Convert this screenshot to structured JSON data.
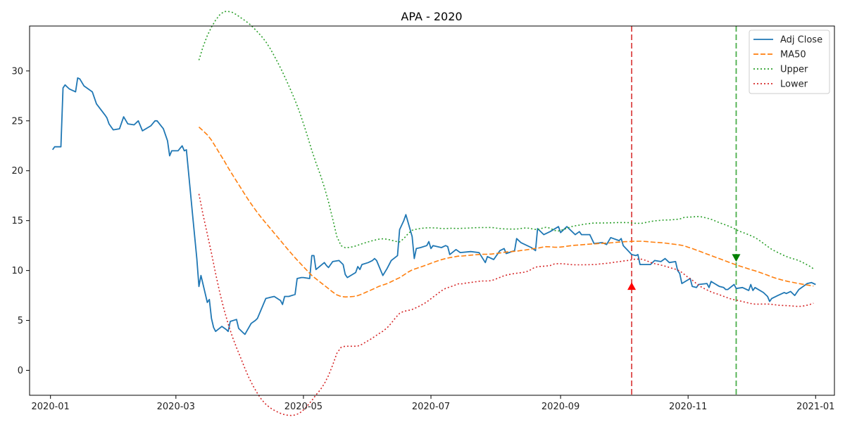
{
  "chart_data": {
    "type": "line",
    "title": "APA - 2020",
    "xlabel": "",
    "ylabel": "",
    "xlim": [
      "2019-12-22",
      "2021-01-10"
    ],
    "ylim": [
      -2.5,
      34.5
    ],
    "grid": false,
    "legend_position": "top-right",
    "x_ticks": [
      "2020-01",
      "2020-03",
      "2020-05",
      "2020-07",
      "2020-09",
      "2020-11",
      "2021-01"
    ],
    "y_ticks": [
      0,
      5,
      10,
      15,
      20,
      25,
      30
    ],
    "series": [
      {
        "name": "Adj Close",
        "color": "#1f77b4",
        "style": "solid",
        "points": [
          [
            "2020-01-02",
            22.1
          ],
          [
            "2020-01-03",
            22.4
          ],
          [
            "2020-01-06",
            22.4
          ],
          [
            "2020-01-07",
            28.3
          ],
          [
            "2020-01-08",
            28.6
          ],
          [
            "2020-01-09",
            28.4
          ],
          [
            "2020-01-10",
            28.2
          ],
          [
            "2020-01-13",
            27.9
          ],
          [
            "2020-01-14",
            29.3
          ],
          [
            "2020-01-15",
            29.2
          ],
          [
            "2020-01-17",
            28.5
          ],
          [
            "2020-01-21",
            27.9
          ],
          [
            "2020-01-23",
            26.7
          ],
          [
            "2020-01-27",
            25.6
          ],
          [
            "2020-01-28",
            25.3
          ],
          [
            "2020-01-29",
            24.7
          ],
          [
            "2020-01-31",
            24.1
          ],
          [
            "2020-02-03",
            24.2
          ],
          [
            "2020-02-05",
            25.4
          ],
          [
            "2020-02-07",
            24.7
          ],
          [
            "2020-02-10",
            24.6
          ],
          [
            "2020-02-12",
            25.0
          ],
          [
            "2020-02-14",
            24.0
          ],
          [
            "2020-02-18",
            24.5
          ],
          [
            "2020-02-20",
            25.0
          ],
          [
            "2020-02-21",
            25.0
          ],
          [
            "2020-02-24",
            24.2
          ],
          [
            "2020-02-26",
            23.0
          ],
          [
            "2020-02-27",
            21.5
          ],
          [
            "2020-02-28",
            22.0
          ],
          [
            "2020-03-02",
            22.0
          ],
          [
            "2020-03-04",
            22.5
          ],
          [
            "2020-03-05",
            22.0
          ],
          [
            "2020-03-06",
            22.1
          ],
          [
            "2020-03-09",
            15.5
          ],
          [
            "2020-03-11",
            11.2
          ],
          [
            "2020-03-12",
            8.4
          ],
          [
            "2020-03-13",
            9.5
          ],
          [
            "2020-03-16",
            6.8
          ],
          [
            "2020-03-17",
            7.1
          ],
          [
            "2020-03-18",
            5.2
          ],
          [
            "2020-03-19",
            4.3
          ],
          [
            "2020-03-20",
            3.9
          ],
          [
            "2020-03-23",
            4.4
          ],
          [
            "2020-03-25",
            4.1
          ],
          [
            "2020-03-26",
            3.9
          ],
          [
            "2020-03-27",
            4.9
          ],
          [
            "2020-03-30",
            5.1
          ],
          [
            "2020-03-31",
            4.2
          ],
          [
            "2020-04-02",
            3.8
          ],
          [
            "2020-04-03",
            3.6
          ],
          [
            "2020-04-06",
            4.7
          ],
          [
            "2020-04-08",
            5.0
          ],
          [
            "2020-04-09",
            5.2
          ],
          [
            "2020-04-13",
            7.2
          ],
          [
            "2020-04-15",
            7.3
          ],
          [
            "2020-04-17",
            7.4
          ],
          [
            "2020-04-20",
            7.0
          ],
          [
            "2020-04-21",
            6.6
          ],
          [
            "2020-04-22",
            7.4
          ],
          [
            "2020-04-24",
            7.4
          ],
          [
            "2020-04-27",
            7.6
          ],
          [
            "2020-04-28",
            9.2
          ],
          [
            "2020-04-30",
            9.3
          ],
          [
            "2020-05-01",
            9.3
          ],
          [
            "2020-05-04",
            9.2
          ],
          [
            "2020-05-05",
            11.5
          ],
          [
            "2020-05-06",
            11.5
          ],
          [
            "2020-05-07",
            10.1
          ],
          [
            "2020-05-11",
            10.8
          ],
          [
            "2020-05-12",
            10.5
          ],
          [
            "2020-05-13",
            10.3
          ],
          [
            "2020-05-15",
            10.9
          ],
          [
            "2020-05-18",
            11.0
          ],
          [
            "2020-05-20",
            10.6
          ],
          [
            "2020-05-21",
            9.6
          ],
          [
            "2020-05-22",
            9.3
          ],
          [
            "2020-05-26",
            9.8
          ],
          [
            "2020-05-27",
            10.4
          ],
          [
            "2020-05-28",
            10.1
          ],
          [
            "2020-05-29",
            10.6
          ],
          [
            "2020-06-01",
            10.8
          ],
          [
            "2020-06-03",
            11.0
          ],
          [
            "2020-06-04",
            11.2
          ],
          [
            "2020-06-05",
            11.0
          ],
          [
            "2020-06-08",
            9.5
          ],
          [
            "2020-06-10",
            10.2
          ],
          [
            "2020-06-12",
            11.0
          ],
          [
            "2020-06-15",
            11.5
          ],
          [
            "2020-06-16",
            14.1
          ],
          [
            "2020-06-18",
            15.0
          ],
          [
            "2020-06-19",
            15.6
          ],
          [
            "2020-06-22",
            13.4
          ],
          [
            "2020-06-23",
            11.2
          ],
          [
            "2020-06-24",
            12.2
          ],
          [
            "2020-06-26",
            12.3
          ],
          [
            "2020-06-29",
            12.5
          ],
          [
            "2020-06-30",
            12.9
          ],
          [
            "2020-07-01",
            12.2
          ],
          [
            "2020-07-02",
            12.5
          ],
          [
            "2020-07-06",
            12.3
          ],
          [
            "2020-07-08",
            12.5
          ],
          [
            "2020-07-09",
            12.4
          ],
          [
            "2020-07-10",
            11.6
          ],
          [
            "2020-07-13",
            12.1
          ],
          [
            "2020-07-15",
            11.8
          ],
          [
            "2020-07-20",
            11.9
          ],
          [
            "2020-07-24",
            11.8
          ],
          [
            "2020-07-27",
            10.8
          ],
          [
            "2020-07-28",
            11.4
          ],
          [
            "2020-07-31",
            11.1
          ],
          [
            "2020-08-03",
            12.0
          ],
          [
            "2020-08-05",
            12.2
          ],
          [
            "2020-08-06",
            11.7
          ],
          [
            "2020-08-10",
            12.0
          ],
          [
            "2020-08-11",
            13.2
          ],
          [
            "2020-08-13",
            12.8
          ],
          [
            "2020-08-18",
            12.3
          ],
          [
            "2020-08-20",
            12.0
          ],
          [
            "2020-08-21",
            14.2
          ],
          [
            "2020-08-24",
            13.6
          ],
          [
            "2020-08-27",
            13.9
          ],
          [
            "2020-08-31",
            14.4
          ],
          [
            "2020-09-01",
            13.8
          ],
          [
            "2020-09-02",
            14.0
          ],
          [
            "2020-09-04",
            14.4
          ],
          [
            "2020-09-08",
            13.6
          ],
          [
            "2020-09-10",
            13.9
          ],
          [
            "2020-09-11",
            13.6
          ],
          [
            "2020-09-15",
            13.6
          ],
          [
            "2020-09-17",
            12.7
          ],
          [
            "2020-09-21",
            12.8
          ],
          [
            "2020-09-23",
            12.6
          ],
          [
            "2020-09-25",
            13.3
          ],
          [
            "2020-09-29",
            13.0
          ],
          [
            "2020-09-30",
            13.2
          ],
          [
            "2020-10-01",
            12.5
          ],
          [
            "2020-10-05",
            11.6
          ],
          [
            "2020-10-07",
            11.5
          ],
          [
            "2020-10-08",
            11.6
          ],
          [
            "2020-10-09",
            10.6
          ],
          [
            "2020-10-14",
            10.6
          ],
          [
            "2020-10-16",
            11.0
          ],
          [
            "2020-10-19",
            10.9
          ],
          [
            "2020-10-21",
            11.2
          ],
          [
            "2020-10-23",
            10.8
          ],
          [
            "2020-10-26",
            10.9
          ],
          [
            "2020-10-27",
            10.0
          ],
          [
            "2020-10-28",
            9.7
          ],
          [
            "2020-10-29",
            8.7
          ],
          [
            "2020-11-02",
            9.2
          ],
          [
            "2020-11-03",
            8.4
          ],
          [
            "2020-11-05",
            8.3
          ],
          [
            "2020-11-06",
            8.6
          ],
          [
            "2020-11-10",
            8.7
          ],
          [
            "2020-11-11",
            8.3
          ],
          [
            "2020-11-12",
            8.9
          ],
          [
            "2020-11-16",
            8.4
          ],
          [
            "2020-11-18",
            8.3
          ],
          [
            "2020-11-19",
            8.1
          ],
          [
            "2020-11-20",
            8.1
          ],
          [
            "2020-11-23",
            8.6
          ],
          [
            "2020-11-24",
            8.2
          ],
          [
            "2020-11-27",
            8.3
          ],
          [
            "2020-11-30",
            8.0
          ],
          [
            "2020-12-01",
            8.6
          ],
          [
            "2020-12-02",
            8.0
          ],
          [
            "2020-12-03",
            8.3
          ],
          [
            "2020-12-07",
            7.8
          ],
          [
            "2020-12-09",
            7.4
          ],
          [
            "2020-12-10",
            6.9
          ],
          [
            "2020-12-11",
            7.2
          ],
          [
            "2020-12-14",
            7.5
          ],
          [
            "2020-12-17",
            7.8
          ],
          [
            "2020-12-18",
            7.7
          ],
          [
            "2020-12-20",
            7.9
          ],
          [
            "2020-12-22",
            7.5
          ],
          [
            "2020-12-24",
            8.1
          ],
          [
            "2020-12-28",
            8.7
          ],
          [
            "2020-12-30",
            8.8
          ],
          [
            "2021-01-01",
            8.6
          ]
        ]
      },
      {
        "name": "MA50",
        "color": "#ff7f0e",
        "style": "dashed",
        "points": []
      },
      {
        "name": "Upper",
        "color": "#2ca02c",
        "style": "dotted",
        "points": []
      },
      {
        "name": "Lower",
        "color": "#d62728",
        "style": "dotted",
        "points": []
      }
    ],
    "annotations": {
      "vlines": [
        {
          "date": "2020-10-05",
          "color": "#d62728",
          "style": "dashed"
        },
        {
          "date": "2020-11-24",
          "color": "#2ca02c",
          "style": "dashed"
        }
      ],
      "markers": [
        {
          "date": "2020-10-05",
          "value": 8.4,
          "symbol": "triangle-up",
          "color": "#ff0000"
        },
        {
          "date": "2020-11-24",
          "value": 11.3,
          "symbol": "triangle-down",
          "color": "#008000"
        }
      ]
    }
  }
}
